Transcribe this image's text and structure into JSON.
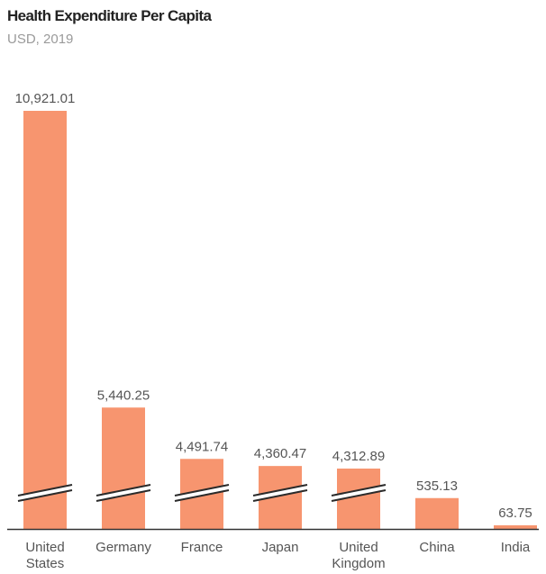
{
  "chart_data": {
    "type": "bar",
    "title": "Health Expenditure Per Capita",
    "subtitle": "USD, 2019",
    "categories": [
      [
        "United",
        "States"
      ],
      [
        "Germany"
      ],
      [
        "France"
      ],
      [
        "Japan"
      ],
      [
        "United",
        "Kingdom"
      ],
      [
        "China"
      ],
      [
        "India"
      ]
    ],
    "values": [
      10921.01,
      5440.25,
      4491.74,
      4360.47,
      4312.89,
      535.13,
      63.75
    ],
    "value_labels": [
      "10,921.01",
      "5,440.25",
      "4,491.74",
      "4,360.47",
      "4,312.89",
      "535.13",
      "63.75"
    ],
    "axis_break": [
      true,
      true,
      true,
      true,
      true,
      false,
      false
    ],
    "xlabel": "",
    "ylabel": "",
    "grid": false,
    "legend": "none",
    "bar_color": "#f7956f",
    "break_color": "#2b2b2b"
  }
}
